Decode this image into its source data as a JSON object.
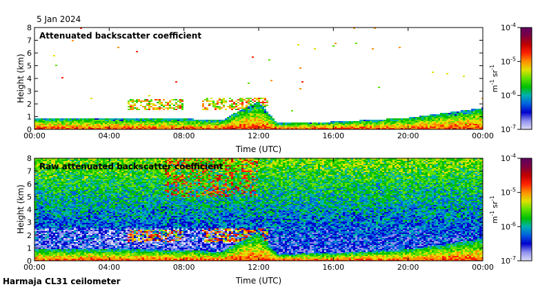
{
  "date_label": "5 Jan 2024",
  "footer_label": "Harmaja CL31 ceilometer",
  "colorbar": {
    "label_base": "m",
    "label_exp1": "-1",
    "label_mid": " sr",
    "label_exp2": "-1",
    "ticks": [
      {
        "base": "10",
        "exp": "-4",
        "value": 0.0001
      },
      {
        "base": "10",
        "exp": "-5",
        "value": 1e-05
      },
      {
        "base": "10",
        "exp": "-6",
        "value": 1e-06
      },
      {
        "base": "10",
        "exp": "-7",
        "value": 1e-07
      }
    ],
    "colors": [
      "#dcdcf6",
      "#9090ee",
      "#0000cc",
      "#0060e0",
      "#00b0b0",
      "#00c000",
      "#60e000",
      "#e0e000",
      "#ff9000",
      "#ff2000",
      "#c00000",
      "#800040",
      "#600060"
    ]
  },
  "chart_data": [
    {
      "type": "heatmap",
      "title": "Attenuated backscatter coefficient",
      "xlabel": "Time (UTC)",
      "ylabel": "Height (km)",
      "xticks": [
        "00:00",
        "04:00",
        "08:00",
        "12:00",
        "16:00",
        "20:00",
        "00:00"
      ],
      "xlim_hours": [
        0,
        24
      ],
      "yticks": [
        "0",
        "1",
        "2",
        "3",
        "4",
        "5",
        "6",
        "7",
        "8"
      ],
      "ylim": [
        0,
        8
      ],
      "colorscale": "log",
      "clim": [
        1e-07,
        0.0001
      ],
      "features": {
        "boundary_layer_top_km": [
          [
            0,
            0.9
          ],
          [
            8,
            0.85
          ],
          [
            10,
            0.7
          ],
          [
            11,
            1.5
          ],
          [
            12,
            2.2
          ],
          [
            13,
            0.5
          ],
          [
            16,
            0.6
          ],
          [
            20,
            0.9
          ],
          [
            22,
            1.3
          ],
          [
            24,
            1.7
          ]
        ],
        "lofted_layers": [
          {
            "start_h": 5.0,
            "end_h": 8.0,
            "bottom_km": 1.5,
            "top_km": 2.4
          },
          {
            "start_h": 9.0,
            "end_h": 12.5,
            "bottom_km": 1.5,
            "top_km": 2.5
          }
        ]
      }
    },
    {
      "type": "heatmap",
      "title": "Raw attenuated backscatter coefficient",
      "xlabel": "Time (UTC)",
      "ylabel": "Height (km)",
      "xticks": [
        "00:00",
        "04:00",
        "08:00",
        "12:00",
        "16:00",
        "20:00",
        "00:00"
      ],
      "xlim_hours": [
        0,
        24
      ],
      "yticks": [
        "0",
        "1",
        "2",
        "3",
        "4",
        "5",
        "6",
        "7",
        "8"
      ],
      "ylim": [
        0,
        8
      ],
      "colorscale": "log",
      "clim": [
        1e-07,
        0.0001
      ]
    }
  ]
}
